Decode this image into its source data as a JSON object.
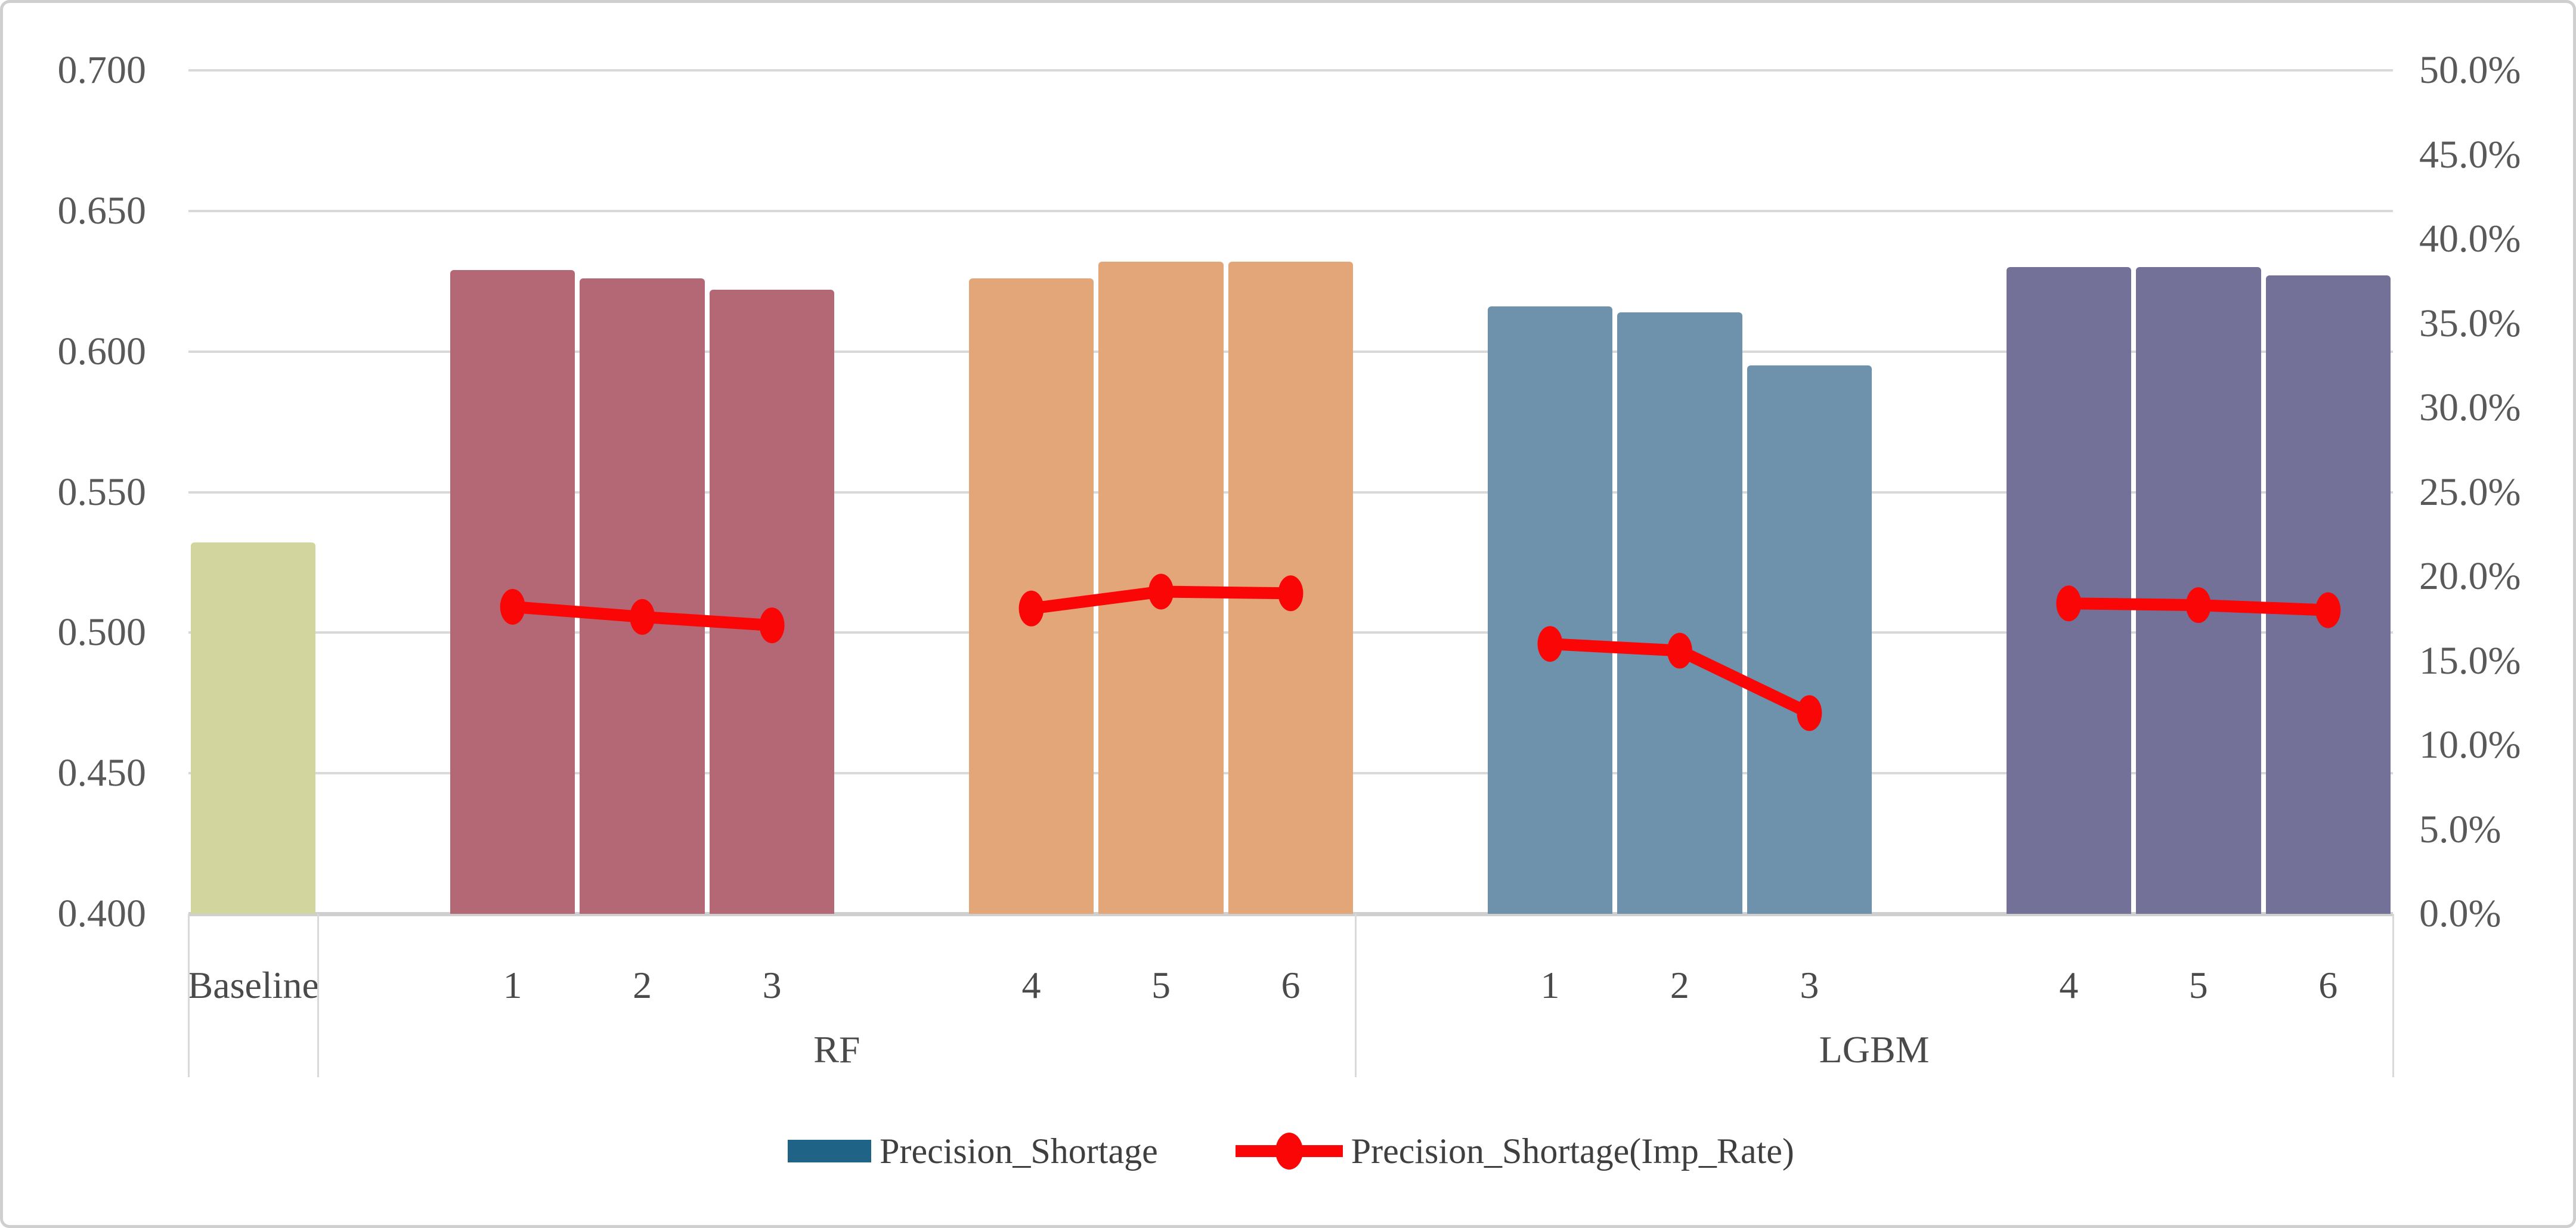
{
  "chart_data": {
    "type": "bar+line combo",
    "title": "",
    "left_axis": {
      "ticks": [
        "0.700",
        "0.650",
        "0.600",
        "0.550",
        "0.500",
        "0.450",
        "0.400"
      ],
      "min": 0.4,
      "max": 0.7
    },
    "right_axis": {
      "ticks": [
        "50.0%",
        "45.0%",
        "40.0%",
        "35.0%",
        "30.0%",
        "25.0%",
        "20.0%",
        "15.0%",
        "10.0%",
        "5.0%",
        "0.0%"
      ],
      "min": 0,
      "max": 50
    },
    "clusters": [
      {
        "group": "",
        "labels": [
          "Baseline"
        ],
        "color": "#D2D69E",
        "bar_values": [
          0.532
        ],
        "line_values": [
          null
        ]
      },
      {
        "group": "RF",
        "labels": [
          "1",
          "2",
          "3"
        ],
        "color": "#B46775",
        "bar_values": [
          0.629,
          0.626,
          0.622
        ],
        "line_values": [
          18.2,
          17.6,
          17.1
        ]
      },
      {
        "group": "RF",
        "labels": [
          "4",
          "5",
          "6"
        ],
        "color": "#E2A678",
        "bar_values": [
          0.626,
          0.632,
          0.632
        ],
        "line_values": [
          18.1,
          19.1,
          19.0
        ]
      },
      {
        "group": "LGBM",
        "labels": [
          "1",
          "2",
          "3"
        ],
        "color": "#6E92AB",
        "bar_values": [
          0.616,
          0.614,
          0.595
        ],
        "line_values": [
          16.0,
          15.6,
          11.9
        ]
      },
      {
        "group": "LGBM",
        "labels": [
          "4",
          "5",
          "6"
        ],
        "color": "#737198",
        "bar_values": [
          0.63,
          0.63,
          0.627
        ],
        "line_values": [
          18.4,
          18.3,
          18.0
        ]
      }
    ],
    "legend": [
      {
        "type": "bar",
        "label": "Precision_Shortage",
        "color": "#1F6387"
      },
      {
        "type": "line",
        "label": "Precision_Shortage(Imp_Rate)",
        "color": "#FB0606"
      }
    ],
    "colors": {
      "gridline": "#D9D9D9",
      "axis_line": "#CFCFCF",
      "tick_text": "#595959",
      "line_series": "#FB0606"
    },
    "layout_hints": {
      "grid": "horizontal",
      "legend_position": "bottom-center",
      "bar_series_on": "left-axis",
      "line_series_on": "right-axis"
    }
  }
}
